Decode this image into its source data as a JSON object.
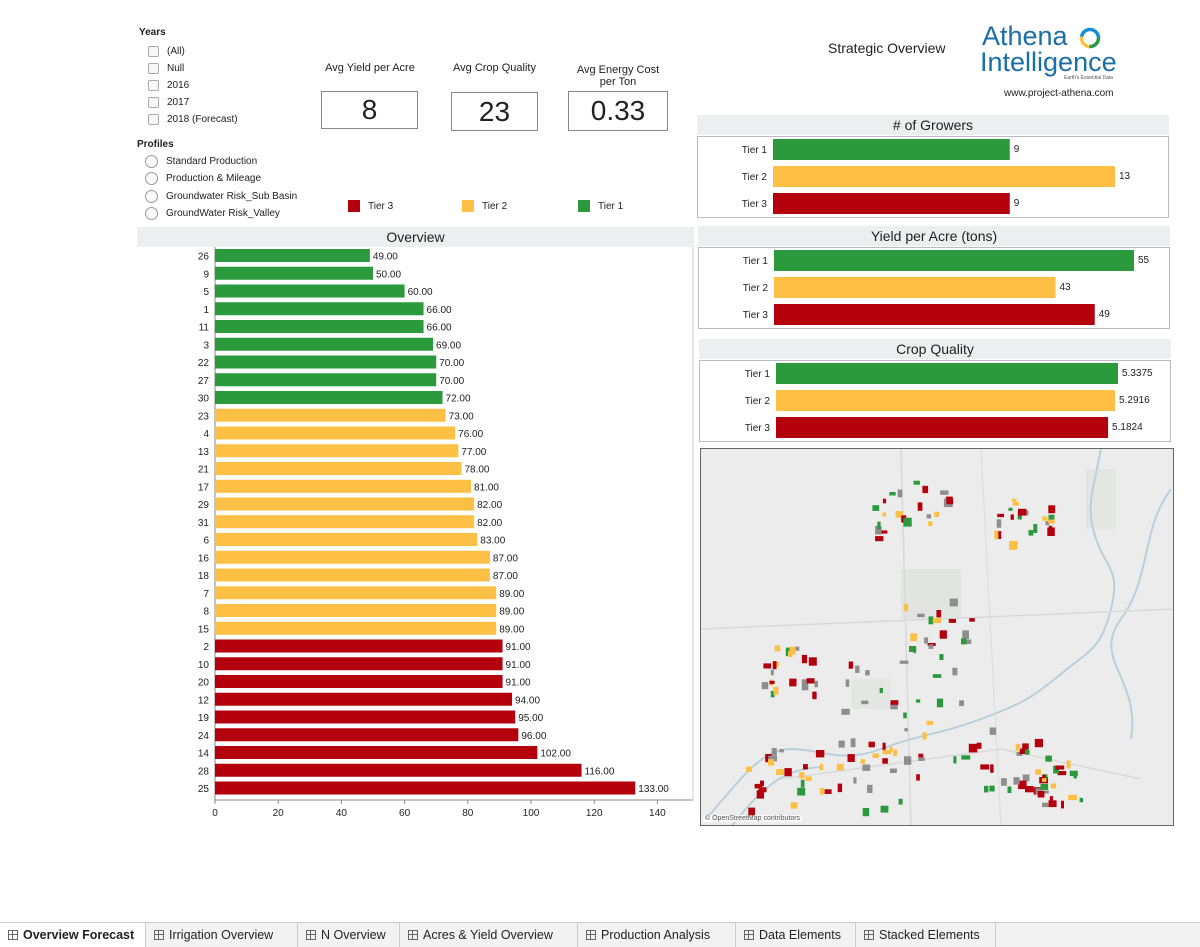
{
  "filters": {
    "years_title": "Years",
    "years": [
      "(All)",
      "Null",
      "2016",
      "2017",
      "2018 (Forecast)"
    ],
    "profiles_title": "Profiles",
    "profiles": [
      "Standard Production",
      "Production & Mileage",
      "Groundwater Risk_Sub Basin",
      "GroundWater Risk_Valley"
    ]
  },
  "kpis": [
    {
      "title": "Avg Yield per Acre",
      "value": "8"
    },
    {
      "title": "Avg Crop Quality",
      "value": "23"
    },
    {
      "title": "Avg Energy Cost per Ton",
      "value": "0.33"
    }
  ],
  "legend": [
    {
      "label": "Tier 3",
      "color": "#b3000c"
    },
    {
      "label": "Tier 2",
      "color": "#fec044"
    },
    {
      "label": "Tier 1",
      "color": "#2a9a3c"
    }
  ],
  "header": {
    "strategic_overview": "Strategic Overview",
    "logo_line1": "Athena",
    "logo_line2": "Intelligence",
    "logo_tagline": "Earth's Essential Data",
    "url": "www.project-athena.com"
  },
  "map": {
    "attribution": "© OpenStreetMap contributors"
  },
  "chart_data": [
    {
      "type": "bar",
      "orientation": "horizontal",
      "title": "Overview",
      "categories": [
        "26",
        "9",
        "5",
        "1",
        "11",
        "3",
        "22",
        "27",
        "30",
        "23",
        "4",
        "13",
        "21",
        "17",
        "29",
        "31",
        "6",
        "16",
        "18",
        "7",
        "8",
        "15",
        "2",
        "10",
        "20",
        "12",
        "19",
        "24",
        "14",
        "28",
        "25"
      ],
      "values": [
        49,
        50,
        60,
        66,
        66,
        69,
        70,
        70,
        72,
        73,
        76,
        77,
        78,
        81,
        82,
        82,
        83,
        87,
        87,
        89,
        89,
        89,
        91,
        91,
        91,
        94,
        95,
        96,
        102,
        116,
        133
      ],
      "value_labels": [
        "49.00",
        "50.00",
        "60.00",
        "66.00",
        "66.00",
        "69.00",
        "70.00",
        "70.00",
        "72.00",
        "73.00",
        "76.00",
        "77.00",
        "78.00",
        "81.00",
        "82.00",
        "82.00",
        "83.00",
        "87.00",
        "87.00",
        "89.00",
        "89.00",
        "89.00",
        "91.00",
        "91.00",
        "91.00",
        "94.00",
        "95.00",
        "96.00",
        "102.00",
        "116.00",
        "133.00"
      ],
      "tiers": [
        "Tier 1",
        "Tier 1",
        "Tier 1",
        "Tier 1",
        "Tier 1",
        "Tier 1",
        "Tier 1",
        "Tier 1",
        "Tier 1",
        "Tier 2",
        "Tier 2",
        "Tier 2",
        "Tier 2",
        "Tier 2",
        "Tier 2",
        "Tier 2",
        "Tier 2",
        "Tier 2",
        "Tier 2",
        "Tier 2",
        "Tier 2",
        "Tier 2",
        "Tier 3",
        "Tier 3",
        "Tier 3",
        "Tier 3",
        "Tier 3",
        "Tier 3",
        "Tier 3",
        "Tier 3",
        "Tier 3"
      ],
      "xlim": [
        0,
        150
      ],
      "xticks": [
        "0",
        "20",
        "40",
        "60",
        "80",
        "100",
        "120",
        "140"
      ],
      "xtick_values": [
        0,
        20,
        40,
        60,
        80,
        100,
        120,
        140
      ],
      "grid": false
    },
    {
      "type": "bar",
      "orientation": "horizontal",
      "title": "# of Growers",
      "categories": [
        "Tier 1",
        "Tier 2",
        "Tier 3"
      ],
      "values": [
        9,
        13,
        9
      ],
      "value_labels": [
        "9",
        "13",
        "9"
      ],
      "xlim": [
        0,
        13
      ]
    },
    {
      "type": "bar",
      "orientation": "horizontal",
      "title": "Yield per Acre (tons)",
      "categories": [
        "Tier 1",
        "Tier 2",
        "Tier 3"
      ],
      "values": [
        55,
        43,
        49
      ],
      "value_labels": [
        "55",
        "43",
        "49"
      ],
      "xlim": [
        0,
        55
      ]
    },
    {
      "type": "bar",
      "orientation": "horizontal",
      "title": "Crop Quality",
      "categories": [
        "Tier 1",
        "Tier 2",
        "Tier 3"
      ],
      "values": [
        5.3375,
        5.2916,
        5.1824
      ],
      "value_labels": [
        "5.3375",
        "5.2916",
        "5.1824"
      ],
      "xlim": [
        0,
        5.3375
      ]
    }
  ],
  "tabs": [
    {
      "label": "Overview Forecast",
      "active": true
    },
    {
      "label": "Irrigation Overview",
      "active": false
    },
    {
      "label": "N Overview",
      "active": false
    },
    {
      "label": "Acres & Yield Overview",
      "active": false
    },
    {
      "label": "Production Analysis",
      "active": false
    },
    {
      "label": "Data Elements",
      "active": false
    },
    {
      "label": "Stacked Elements",
      "active": false
    }
  ]
}
